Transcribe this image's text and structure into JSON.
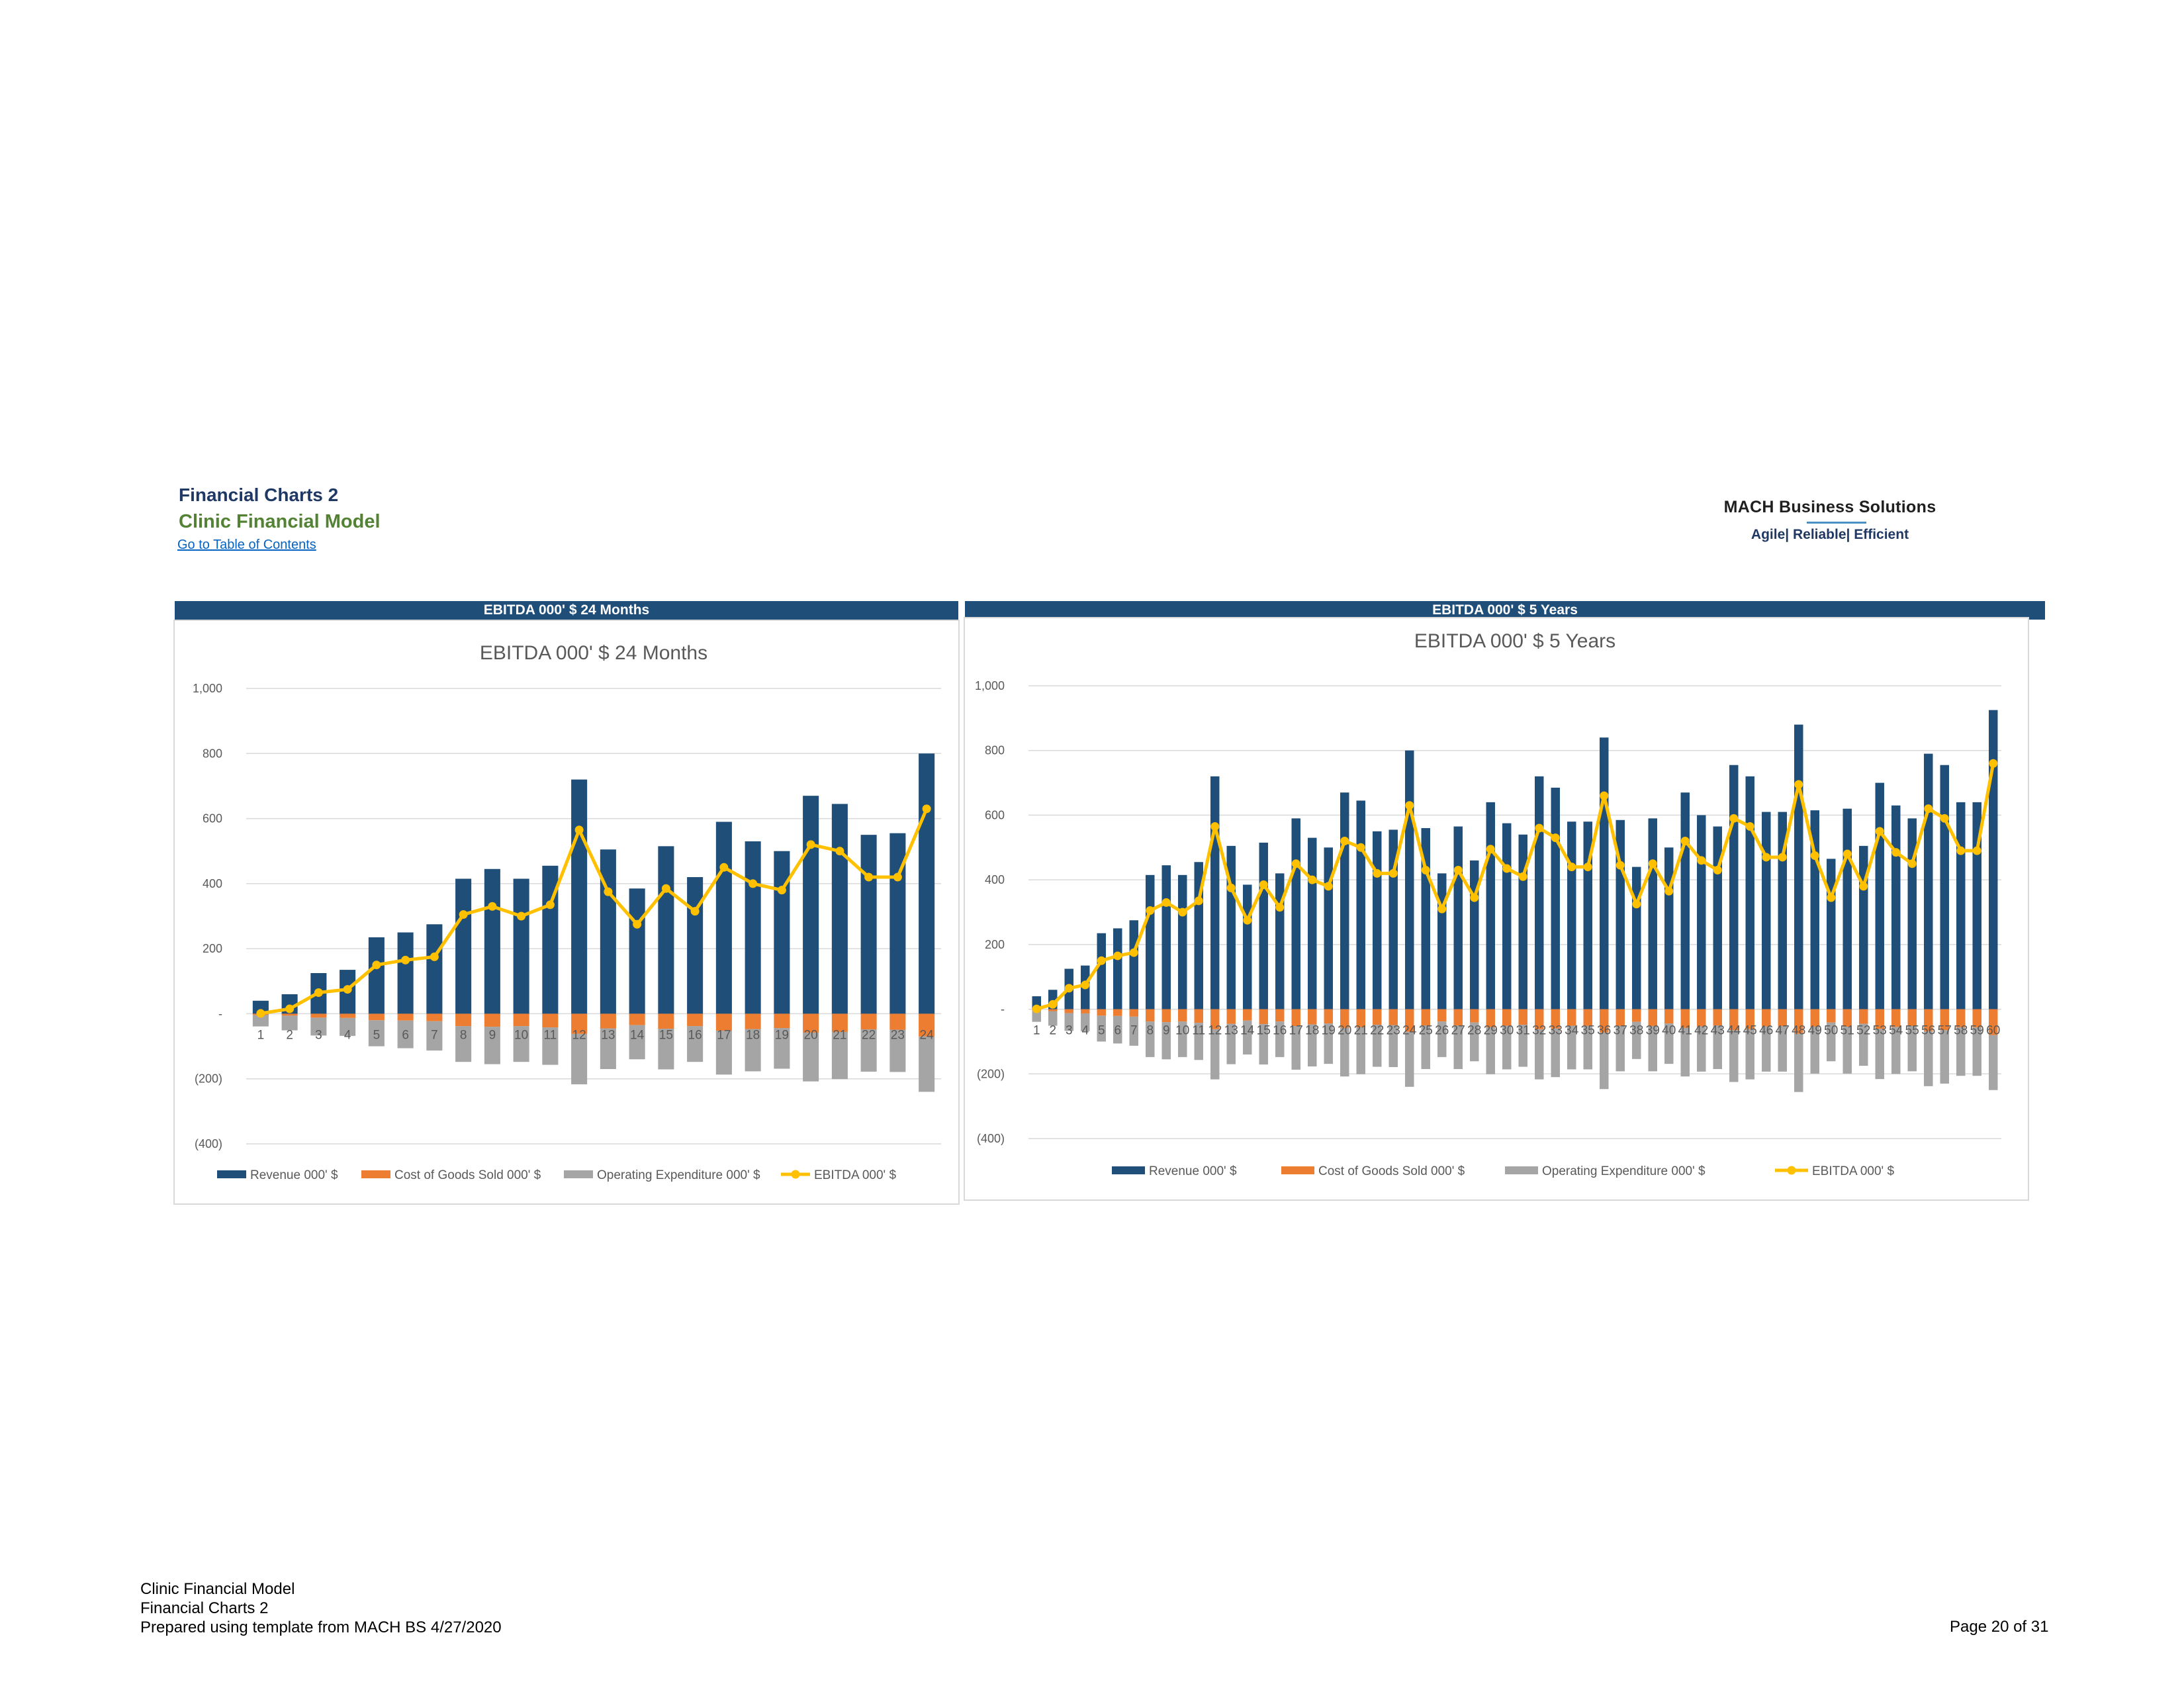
{
  "header": {
    "title": "Financial Charts 2",
    "subtitle": "Clinic Financial Model",
    "toc_link": "Go to Table of Contents"
  },
  "logo": {
    "name": "MACH Business Solutions",
    "tagline": "Agile| Reliable| Efficient",
    "accent_color": "#4a90c2"
  },
  "panels": [
    {
      "bar_label": "EBITDA 000' $ 24 Months"
    },
    {
      "bar_label": "EBITDA 000' $ 5 Years"
    }
  ],
  "colors": {
    "revenue": "#1f4e79",
    "cogs": "#ed7d31",
    "opex": "#a5a5a5",
    "ebitda": "#ffc000",
    "header_bar": "#1f4e79"
  },
  "chart_data": [
    {
      "type": "bar",
      "title": "EBITDA 000' $ 24 Months",
      "ylim": [
        -400,
        1000
      ],
      "yticks": [
        1000,
        800,
        600,
        400,
        200,
        0,
        -200,
        -400
      ],
      "ytick_labels": [
        "1,000",
        "800",
        "600",
        "400",
        "200",
        "-",
        "(200)",
        "(400)"
      ],
      "grid": true,
      "legend_position": "bottom",
      "categories": [
        "1",
        "2",
        "3",
        "4",
        "5",
        "6",
        "7",
        "8",
        "9",
        "10",
        "11",
        "12",
        "13",
        "14",
        "15",
        "16",
        "17",
        "18",
        "19",
        "20",
        "21",
        "22",
        "23",
        "24"
      ],
      "series": [
        {
          "name": "Revenue 000' $",
          "type": "bar",
          "values": [
            40,
            60,
            125,
            135,
            235,
            250,
            275,
            415,
            445,
            415,
            455,
            720,
            505,
            385,
            515,
            420,
            590,
            530,
            500,
            670,
            645,
            550,
            555,
            800
          ]
        },
        {
          "name": "Cost of Goods Sold 000' $",
          "type": "bar",
          "values": [
            -4,
            -6,
            -12,
            -13,
            -20,
            -21,
            -23,
            -38,
            -40,
            -38,
            -42,
            -62,
            -45,
            -35,
            -46,
            -38,
            -52,
            -47,
            -44,
            -58,
            -56,
            -48,
            -49,
            -70
          ]
        },
        {
          "name": "Operating Expenditure 000' $",
          "type": "bar",
          "values": [
            -35,
            -45,
            -55,
            -55,
            -80,
            -85,
            -90,
            -110,
            -115,
            -110,
            -115,
            -155,
            -125,
            -105,
            -125,
            -110,
            -135,
            -130,
            -125,
            -150,
            -145,
            -130,
            -130,
            -170
          ]
        },
        {
          "name": "EBITDA 000' $",
          "type": "line",
          "values": [
            1,
            15,
            65,
            75,
            150,
            165,
            175,
            305,
            330,
            300,
            335,
            565,
            375,
            275,
            385,
            315,
            450,
            400,
            380,
            520,
            500,
            420,
            420,
            630
          ]
        }
      ]
    },
    {
      "type": "bar",
      "title": "EBITDA 000' $ 5 Years",
      "ylim": [
        -400,
        1000
      ],
      "yticks": [
        1000,
        800,
        600,
        400,
        200,
        0,
        -200,
        -400
      ],
      "ytick_labels": [
        "1,000",
        "800",
        "600",
        "400",
        "200",
        "-",
        "(200)",
        "(400)"
      ],
      "grid": true,
      "legend_position": "bottom",
      "categories": [
        "1",
        "2",
        "3",
        "4",
        "5",
        "6",
        "7",
        "8",
        "9",
        "10",
        "11",
        "12",
        "13",
        "14",
        "15",
        "16",
        "17",
        "18",
        "19",
        "20",
        "21",
        "22",
        "23",
        "24",
        "25",
        "26",
        "27",
        "28",
        "29",
        "30",
        "31",
        "32",
        "33",
        "34",
        "35",
        "36",
        "37",
        "38",
        "39",
        "40",
        "41",
        "42",
        "43",
        "44",
        "45",
        "46",
        "47",
        "48",
        "49",
        "50",
        "51",
        "52",
        "53",
        "54",
        "55",
        "56",
        "57",
        "58",
        "59",
        "60"
      ],
      "series": [
        {
          "name": "Revenue 000' $",
          "type": "bar",
          "values": [
            40,
            60,
            125,
            135,
            235,
            250,
            275,
            415,
            445,
            415,
            455,
            720,
            505,
            385,
            515,
            420,
            590,
            530,
            500,
            670,
            645,
            550,
            555,
            800,
            560,
            420,
            565,
            460,
            640,
            575,
            540,
            720,
            685,
            580,
            580,
            840,
            585,
            440,
            590,
            500,
            670,
            600,
            565,
            755,
            720,
            610,
            610,
            880,
            615,
            465,
            620,
            505,
            700,
            630,
            590,
            790,
            755,
            640,
            640,
            925
          ]
        },
        {
          "name": "Cost of Goods Sold 000' $",
          "type": "bar",
          "values": [
            -4,
            -6,
            -12,
            -13,
            -20,
            -21,
            -23,
            -38,
            -40,
            -38,
            -42,
            -62,
            -45,
            -35,
            -46,
            -38,
            -52,
            -47,
            -44,
            -58,
            -56,
            -48,
            -49,
            -70,
            -50,
            -38,
            -50,
            -41,
            -56,
            -51,
            -48,
            -62,
            -60,
            -51,
            -51,
            -72,
            -52,
            -39,
            -52,
            -44,
            -58,
            -53,
            -50,
            -65,
            -62,
            -53,
            -53,
            -76,
            -54,
            -41,
            -54,
            -45,
            -61,
            -55,
            -52,
            -68,
            -65,
            -56,
            -56,
            -80
          ]
        },
        {
          "name": "Operating Expenditure 000' $",
          "type": "bar",
          "values": [
            -35,
            -45,
            -55,
            -55,
            -80,
            -85,
            -90,
            -110,
            -115,
            -110,
            -115,
            -155,
            -125,
            -105,
            -125,
            -110,
            -135,
            -130,
            -125,
            -150,
            -145,
            -130,
            -130,
            -170,
            -135,
            -110,
            -135,
            -120,
            -145,
            -135,
            -130,
            -155,
            -150,
            -135,
            -135,
            -175,
            -140,
            -115,
            -140,
            -125,
            -150,
            -140,
            -135,
            -160,
            -155,
            -140,
            -140,
            -180,
            -145,
            -120,
            -145,
            -130,
            -155,
            -145,
            -140,
            -170,
            -165,
            -150,
            -150,
            -170
          ]
        },
        {
          "name": "EBITDA 000' $",
          "type": "line",
          "values": [
            1,
            15,
            65,
            75,
            150,
            165,
            175,
            305,
            330,
            300,
            335,
            565,
            375,
            275,
            385,
            315,
            450,
            400,
            380,
            520,
            500,
            420,
            420,
            630,
            430,
            310,
            430,
            345,
            495,
            435,
            410,
            560,
            530,
            440,
            440,
            660,
            445,
            325,
            450,
            365,
            520,
            460,
            430,
            590,
            565,
            470,
            470,
            695,
            475,
            345,
            480,
            380,
            550,
            485,
            450,
            620,
            590,
            490,
            490,
            760
          ]
        }
      ]
    }
  ],
  "footer": {
    "line1": "Clinic Financial Model",
    "line2": "Financial Charts 2",
    "line3": "Prepared using template from MACH BS 4/27/2020",
    "page": "Page 20 of 31"
  }
}
